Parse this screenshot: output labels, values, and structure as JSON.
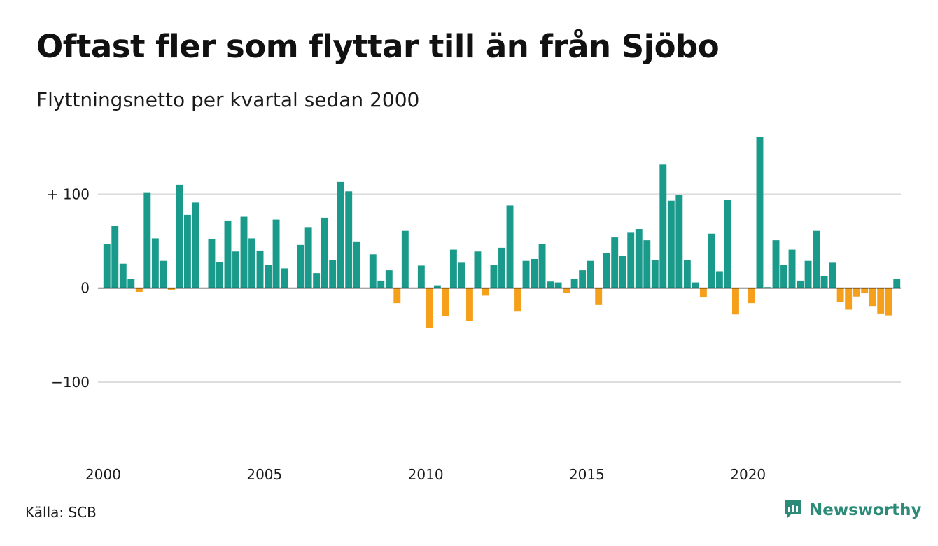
{
  "header": {
    "title": "Oftast fler som flyttar till än från Sjöbo",
    "subtitle": "Flyttningsnetto per kvartal sedan 2000"
  },
  "footer": {
    "source": "Källa: SCB",
    "brand": "Newsworthy",
    "logo_icon": "newsworthy-logo-icon"
  },
  "colors": {
    "positive": "#1a9a8a",
    "negative": "#f59f1a",
    "grid": "#dddddd",
    "brand": "#2c8a78"
  },
  "chart_data": {
    "type": "bar",
    "title": "Oftast fler som flyttar till än från Sjöbo",
    "subtitle": "Flyttningsnetto per kvartal sedan 2000",
    "xlabel": "",
    "ylabel": "",
    "ylim": [
      -170,
      165
    ],
    "yticks": [
      {
        "value": 100,
        "label": "+ 100"
      },
      {
        "value": 0,
        "label": "0"
      },
      {
        "value": -100,
        "label": "−100"
      }
    ],
    "xticks": [
      {
        "value": 2000,
        "label": "2000"
      },
      {
        "value": 2005,
        "label": "2005"
      },
      {
        "value": 2010,
        "label": "2010"
      },
      {
        "value": 2015,
        "label": "2015"
      },
      {
        "value": 2020,
        "label": "2020"
      }
    ],
    "grid": true,
    "start_year": 2000,
    "periods_per_year": 4,
    "values": [
      47,
      66,
      26,
      10,
      -4,
      102,
      53,
      29,
      -2,
      110,
      78,
      91,
      0,
      52,
      28,
      72,
      39,
      76,
      53,
      40,
      25,
      73,
      21,
      0,
      46,
      65,
      16,
      75,
      30,
      113,
      103,
      49,
      0,
      36,
      8,
      19,
      -16,
      61,
      0,
      24,
      -42,
      3,
      -30,
      41,
      27,
      -35,
      39,
      -8,
      25,
      43,
      88,
      -25,
      29,
      31,
      47,
      7,
      6,
      -5,
      10,
      19,
      29,
      -18,
      37,
      54,
      34,
      59,
      63,
      51,
      30,
      132,
      93,
      99,
      30,
      6,
      -10,
      58,
      18,
      94,
      -28,
      0,
      -16,
      161,
      1,
      51,
      25,
      41,
      8,
      29,
      61,
      13,
      27,
      -15,
      -23,
      -9,
      -5,
      -19,
      -27,
      -29,
      10
    ]
  }
}
